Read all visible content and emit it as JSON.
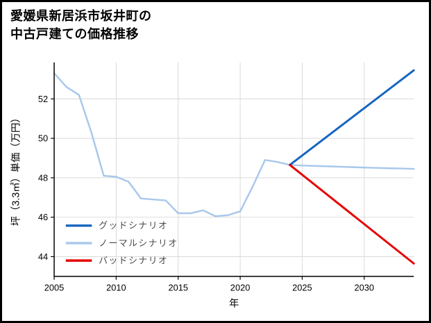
{
  "title": {
    "line1": "愛媛県新居浜市坂井町の",
    "line2": "中古戸建ての価格推移"
  },
  "chart_data": {
    "type": "line",
    "title": "愛媛県新居浜市坂井町の中古戸建ての価格推移",
    "xlabel": "年",
    "ylabel": "坪（3.3㎡）単価（万円）",
    "xlim": [
      2005,
      2034
    ],
    "ylim": [
      43.0,
      53.85
    ],
    "xticks": [
      2005,
      2010,
      2015,
      2020,
      2025,
      2030
    ],
    "yticks": [
      44,
      46,
      48,
      50,
      52
    ],
    "grid": true,
    "legend_position": "lower-left",
    "colors": {
      "background": "#ffffff",
      "grid": "#d9d9d9",
      "axis": "#000000",
      "tick_label": "#000000",
      "legend_text": "#4a4a4a",
      "good": "#1565c0",
      "normal": "#a8c8ec",
      "bad": "#e60000"
    },
    "series": [
      {
        "name": "グッドシナリオ",
        "color": "#1565c0",
        "width": 3,
        "x": [
          2024,
          2034
        ],
        "y": [
          48.65,
          53.45
        ]
      },
      {
        "name": "ノーマルシナリオ",
        "color": "#a8c8ec",
        "width": 2.5,
        "x": [
          2005,
          2006,
          2007,
          2008,
          2009,
          2010,
          2011,
          2012,
          2013,
          2014,
          2015,
          2016,
          2017,
          2018,
          2019,
          2020,
          2021,
          2022,
          2023,
          2024,
          2025,
          2026,
          2027,
          2028,
          2029,
          2030,
          2031,
          2032,
          2033,
          2034
        ],
        "y": [
          53.3,
          52.6,
          52.2,
          50.3,
          48.1,
          48.05,
          47.8,
          46.95,
          46.9,
          46.85,
          46.2,
          46.2,
          46.35,
          46.05,
          46.1,
          46.3,
          47.55,
          48.9,
          48.8,
          48.65,
          48.62,
          48.6,
          48.58,
          48.56,
          48.54,
          48.52,
          48.5,
          48.48,
          48.47,
          48.45
        ]
      },
      {
        "name": "バッドシナリオ",
        "color": "#e60000",
        "width": 3,
        "x": [
          2024,
          2034
        ],
        "y": [
          48.65,
          43.65
        ]
      }
    ]
  }
}
